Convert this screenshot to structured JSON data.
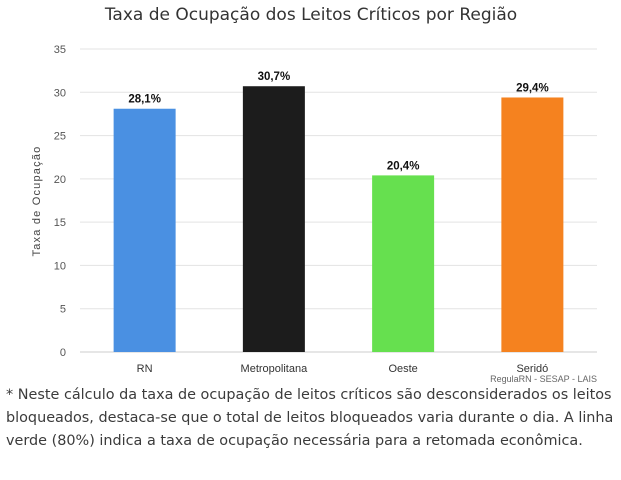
{
  "chart_data": {
    "type": "bar",
    "title": "Taxa de Ocupação dos Leitos Críticos por Região",
    "ylabel": "Taxa de Ocupação",
    "xlabel": "",
    "ylim": [
      0,
      35
    ],
    "yticks": [
      0,
      5,
      10,
      15,
      20,
      25,
      30,
      35
    ],
    "grid": true,
    "categories": [
      "RN",
      "Metropolitana",
      "Oeste",
      "Seridó"
    ],
    "values": [
      28.1,
      30.7,
      20.4,
      29.4
    ],
    "data_labels": [
      "28,1%",
      "30,7%",
      "20,4%",
      "29,4%"
    ],
    "colors": [
      "#4a90e2",
      "#1c1c1c",
      "#66e04f",
      "#f5821f"
    ],
    "credit": "RegulaRN - SESAP - LAIS"
  },
  "footnote": "* Neste cálculo da taxa de ocupação de leitos críticos são desconsiderados os leitos bloqueados, destaca-se que o total de leitos bloqueados varia durante o dia. A linha verde (80%) indica a taxa de ocupação necessária para a retomada econômica."
}
